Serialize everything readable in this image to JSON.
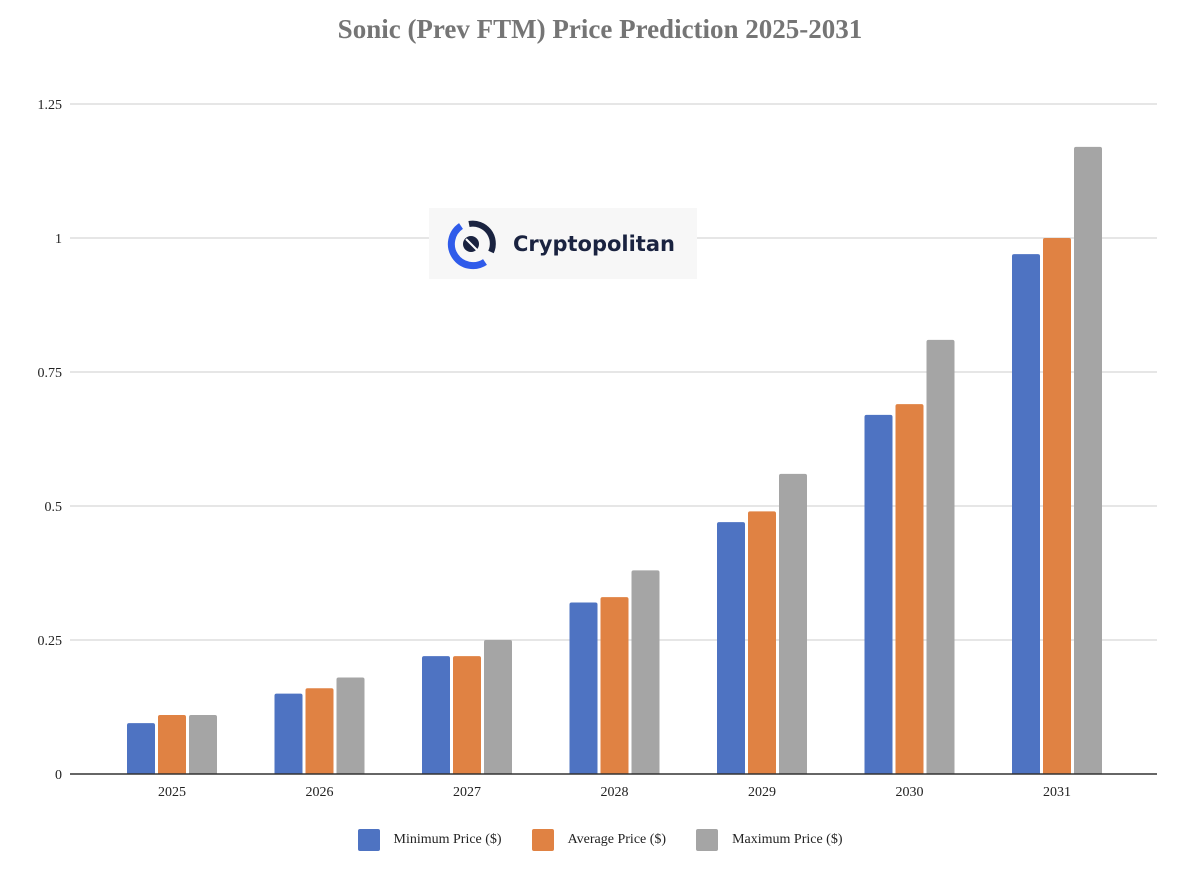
{
  "chart_data": {
    "type": "bar",
    "title": "Sonic (Prev FTM) Price Prediction 2025-2031",
    "xlabel": "",
    "ylabel": "",
    "categories": [
      "2025",
      "2026",
      "2027",
      "2028",
      "2029",
      "2030",
      "2031"
    ],
    "series": [
      {
        "name": "Minimum Price ($)",
        "color": "#4e73c2",
        "values": [
          0.095,
          0.15,
          0.22,
          0.32,
          0.47,
          0.67,
          0.97
        ]
      },
      {
        "name": "Average Price ($)",
        "color": "#e08243",
        "values": [
          0.11,
          0.16,
          0.22,
          0.33,
          0.49,
          0.69,
          1.0
        ]
      },
      {
        "name": "Maximum Price ($)",
        "color": "#a5a5a5",
        "values": [
          0.11,
          0.18,
          0.25,
          0.38,
          0.56,
          0.81,
          1.17
        ]
      }
    ],
    "ylim": [
      0,
      1.25
    ],
    "yticks": [
      "0",
      "0.25",
      "0.5",
      "0.75",
      "1",
      "1.25"
    ],
    "grid": true,
    "legend_position": "bottom"
  },
  "watermark": {
    "text": "Cryptopolitan",
    "color": "#2f5bea"
  }
}
